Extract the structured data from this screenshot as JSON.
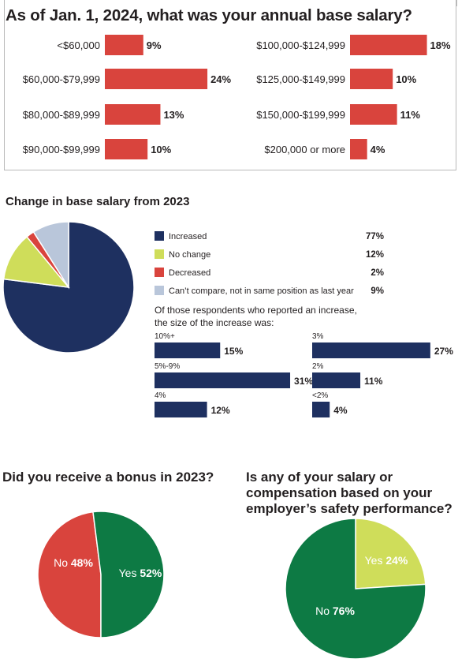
{
  "colors": {
    "red": "#d9443d",
    "navy": "#1e3060",
    "lime": "#cfdd5a",
    "light_blue": "#b9c6da",
    "green": "#0d7a44",
    "gray": "#b9b9b9"
  },
  "chart_data": [
    {
      "type": "bar",
      "title": "As of Jan. 1, 2024, what was your annual base salary?",
      "categories": [
        "<$60,000",
        "$60,000-$79,999",
        "$80,000-$89,999",
        "$90,000-$99,999",
        "$100,000-$124,999",
        "$125,000-$149,999",
        "$150,000-$199,999",
        "$200,000 or more"
      ],
      "values": [
        9,
        24,
        13,
        10,
        18,
        10,
        11,
        4
      ],
      "value_labels": [
        "9%",
        "24%",
        "13%",
        "10%",
        "18%",
        "10%",
        "11%",
        "4%"
      ],
      "orientation": "horizontal",
      "color": "#d9443d"
    },
    {
      "type": "pie",
      "title": "Change in base salary from 2023",
      "categories": [
        "Increased",
        "No change",
        "Decreased",
        "Can’t compare, not in same position as last year"
      ],
      "values": [
        77,
        12,
        2,
        9
      ],
      "value_labels": [
        "77%",
        "12%",
        "2%",
        "9%"
      ],
      "colors": [
        "#1e3060",
        "#cfdd5a",
        "#d9443d",
        "#b9c6da"
      ],
      "legend": "right"
    },
    {
      "type": "bar",
      "title": "Of those respondents who reported an increase, the size of the increase was:",
      "categories": [
        "10%+",
        "5%-9%",
        "4%",
        "3%",
        "2%",
        "<2%"
      ],
      "values": [
        15,
        31,
        12,
        27,
        11,
        4
      ],
      "value_labels": [
        "15%",
        "31%",
        "12%",
        "27%",
        "11%",
        "4%"
      ],
      "orientation": "horizontal",
      "color": "#1e3060"
    },
    {
      "type": "pie",
      "title": "Did you receive a bonus in 2023?",
      "categories": [
        "No",
        "Yes"
      ],
      "values": [
        48,
        52
      ],
      "value_labels": [
        "48%",
        "52%"
      ],
      "colors": [
        "#d9443d",
        "#0d7a44"
      ]
    },
    {
      "type": "pie",
      "title": "Is any of your salary or compensation based on your employer’s safety performance?",
      "categories": [
        "Yes",
        "No"
      ],
      "values": [
        24,
        76
      ],
      "value_labels": [
        "24%",
        "76%"
      ],
      "colors": [
        "#cfdd5a",
        "#0d7a44"
      ]
    }
  ]
}
